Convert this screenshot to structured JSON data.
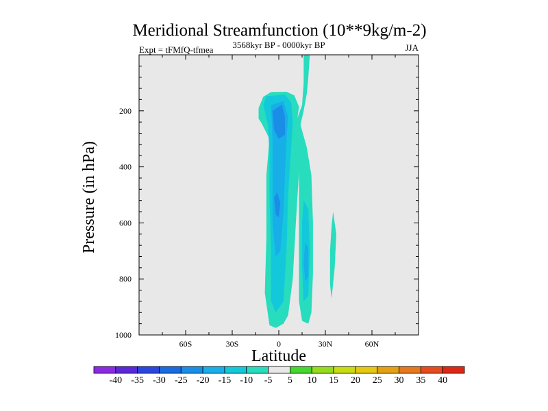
{
  "chart_data": {
    "type": "contour",
    "title": "Meridional Streamfunction (10**9kg/m-2)",
    "subtitle_left": "Expt = tFMfQ-tfmea",
    "subtitle_center": "3568kyr BP - 0000kyr BP",
    "subtitle_right": "JJA",
    "xlabel": "Latitude",
    "ylabel": "Pressure (in hPa)",
    "xlim": [
      -90,
      90
    ],
    "ylim": [
      1000,
      0
    ],
    "x_ticks": [
      {
        "value": -60,
        "label": "60S"
      },
      {
        "value": -30,
        "label": "30S"
      },
      {
        "value": 0,
        "label": "0"
      },
      {
        "value": 30,
        "label": "30N"
      },
      {
        "value": 60,
        "label": "60N"
      }
    ],
    "y_ticks": [
      {
        "value": 200,
        "label": "200"
      },
      {
        "value": 400,
        "label": "400"
      },
      {
        "value": 600,
        "label": "600"
      },
      {
        "value": 800,
        "label": "800"
      },
      {
        "value": 1000,
        "label": "1000"
      }
    ],
    "colorbar": {
      "levels": [
        "-40",
        "-35",
        "-30",
        "-25",
        "-20",
        "-15",
        "-10",
        "-5",
        "5",
        "10",
        "15",
        "20",
        "25",
        "30",
        "35",
        "40"
      ],
      "colors": [
        "#8a2be2",
        "#5a28d6",
        "#2a46dc",
        "#1a6be0",
        "#1a8ee6",
        "#18aee8",
        "#14c8dc",
        "#28dcbe",
        "#e8e8e8",
        "#46d630",
        "#96dc1e",
        "#c8dc14",
        "#e6c814",
        "#e6a014",
        "#e6781e",
        "#e64a1e",
        "#dc2814"
      ]
    },
    "regions": [
      {
        "name": "tropical-cell-main",
        "level_color": "#28dcbe",
        "outline": [
          [
            -13,
            228
          ],
          [
            -13,
            190
          ],
          [
            -10,
            150
          ],
          [
            -5,
            133
          ],
          [
            5,
            132
          ],
          [
            10,
            145
          ],
          [
            13,
            185
          ],
          [
            12,
            225
          ],
          [
            14,
            330
          ],
          [
            11,
            600
          ],
          [
            9,
            800
          ],
          [
            6,
            930
          ],
          [
            3,
            960
          ],
          [
            -2,
            975
          ],
          [
            -6,
            965
          ],
          [
            -9,
            850
          ],
          [
            -8,
            650
          ],
          [
            -8,
            430
          ],
          [
            -6,
            300
          ],
          [
            -11,
            245
          ]
        ]
      },
      {
        "name": "tropical-cell-mid",
        "level_color": "#14c8dc",
        "outline": [
          [
            -10,
            178
          ],
          [
            -8,
            148
          ],
          [
            4,
            142
          ],
          [
            8,
            170
          ],
          [
            9,
            240
          ],
          [
            8,
            330
          ],
          [
            6,
            500
          ],
          [
            5,
            700
          ],
          [
            3,
            880
          ],
          [
            -2,
            920
          ],
          [
            -5,
            880
          ],
          [
            -5,
            700
          ],
          [
            -6,
            500
          ],
          [
            -6,
            350
          ],
          [
            -7,
            250
          ]
        ]
      },
      {
        "name": "tropical-cell-inner",
        "level_color": "#18aee8",
        "outline": [
          [
            -5,
            180
          ],
          [
            3,
            165
          ],
          [
            6,
            220
          ],
          [
            5,
            300
          ],
          [
            4,
            420
          ],
          [
            3,
            560
          ],
          [
            1,
            700
          ],
          [
            -2,
            720
          ],
          [
            -4,
            600
          ],
          [
            -4,
            430
          ],
          [
            -4,
            300
          ]
        ]
      },
      {
        "name": "tropical-cell-core-upper",
        "level_color": "#1a8ee6",
        "outline": [
          [
            -4,
            200
          ],
          [
            2,
            178
          ],
          [
            4,
            220
          ],
          [
            4,
            285
          ],
          [
            0,
            300
          ],
          [
            -3,
            270
          ]
        ]
      },
      {
        "name": "tropical-cell-core-lower",
        "level_color": "#1a8ee6",
        "outline": [
          [
            -3,
            510
          ],
          [
            -1,
            490
          ],
          [
            1,
            530
          ],
          [
            0,
            580
          ],
          [
            -2,
            570
          ]
        ]
      },
      {
        "name": "ne-cell-outer",
        "level_color": "#28dcbe",
        "outline": [
          [
            16,
            0
          ],
          [
            20,
            0
          ],
          [
            19,
            80
          ],
          [
            18,
            140
          ],
          [
            16,
            200
          ],
          [
            14,
            250
          ],
          [
            18,
            330
          ],
          [
            21,
            430
          ],
          [
            22,
            600
          ],
          [
            22,
            780
          ],
          [
            21,
            920
          ],
          [
            19,
            960
          ],
          [
            15,
            950
          ],
          [
            13,
            880
          ],
          [
            13,
            700
          ],
          [
            13,
            500
          ],
          [
            13,
            330
          ],
          [
            11,
            240
          ],
          [
            15,
            180
          ],
          [
            16,
            100
          ]
        ]
      },
      {
        "name": "ne-cell-inner",
        "level_color": "#14c8dc",
        "outline": [
          [
            16,
            520
          ],
          [
            19,
            550
          ],
          [
            20,
            700
          ],
          [
            19,
            860
          ],
          [
            16,
            880
          ],
          [
            15,
            760
          ],
          [
            15,
            600
          ]
        ]
      },
      {
        "name": "ne-cell-core",
        "level_color": "#18aee8",
        "outline": [
          [
            17,
            670
          ],
          [
            19,
            690
          ],
          [
            19,
            790
          ],
          [
            17,
            810
          ],
          [
            16,
            740
          ]
        ]
      },
      {
        "name": "subtropical-cell",
        "level_color": "#28dcbe",
        "outline": [
          [
            35,
            560
          ],
          [
            37,
            640
          ],
          [
            36,
            760
          ],
          [
            34,
            870
          ],
          [
            33,
            820
          ],
          [
            33,
            700
          ],
          [
            34,
            610
          ]
        ]
      }
    ]
  }
}
